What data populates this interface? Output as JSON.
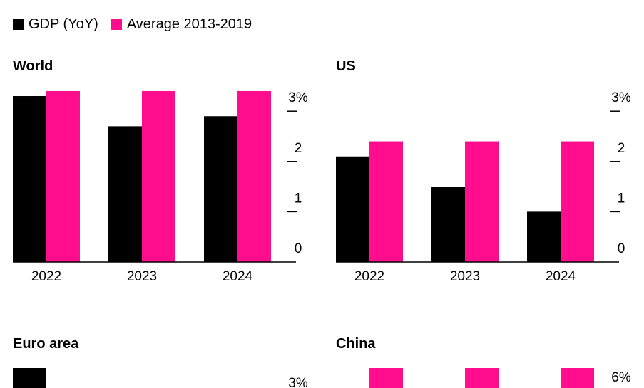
{
  "legend": [
    {
      "label": "GDP (YoY)",
      "color": "#000000"
    },
    {
      "label": "Average 2013-2019",
      "color": "#ff0d8c"
    }
  ],
  "chart_data": [
    {
      "type": "bar",
      "title": "World",
      "categories": [
        "2022",
        "2023",
        "2024"
      ],
      "series": [
        {
          "name": "GDP (YoY)",
          "values": [
            3.3,
            2.7,
            2.9
          ]
        },
        {
          "name": "Average 2013-2019",
          "values": [
            3.4,
            3.4,
            3.4
          ]
        }
      ],
      "ylim": [
        0,
        3.4
      ],
      "yticks": [
        0,
        1,
        2,
        3
      ],
      "ytick_labels": [
        "0",
        "1",
        "2",
        "3%"
      ],
      "yaxis_position": "right"
    },
    {
      "type": "bar",
      "title": "US",
      "categories": [
        "2022",
        "2023",
        "2024"
      ],
      "series": [
        {
          "name": "GDP (YoY)",
          "values": [
            2.1,
            1.5,
            1.0
          ]
        },
        {
          "name": "Average 2013-2019",
          "values": [
            2.4,
            2.4,
            2.4
          ]
        }
      ],
      "ylim": [
        0,
        3.4
      ],
      "yticks": [
        0,
        1,
        2,
        3
      ],
      "ytick_labels": [
        "0",
        "1",
        "2",
        "3%"
      ],
      "yaxis_position": "right"
    },
    {
      "type": "bar",
      "title": "Euro area",
      "categories": [],
      "series": [
        {
          "name": "GDP (YoY)",
          "values": []
        },
        {
          "name": "Average 2013-2019",
          "values": []
        }
      ],
      "ytick_labels": [
        "3%"
      ],
      "yaxis_position": "right",
      "partially_visible": true
    },
    {
      "type": "bar",
      "title": "China",
      "categories": [],
      "series": [
        {
          "name": "GDP (YoY)",
          "values": []
        },
        {
          "name": "Average 2013-2019",
          "values": []
        }
      ],
      "ytick_labels": [
        "6%"
      ],
      "yaxis_position": "right",
      "partially_visible": true
    }
  ]
}
